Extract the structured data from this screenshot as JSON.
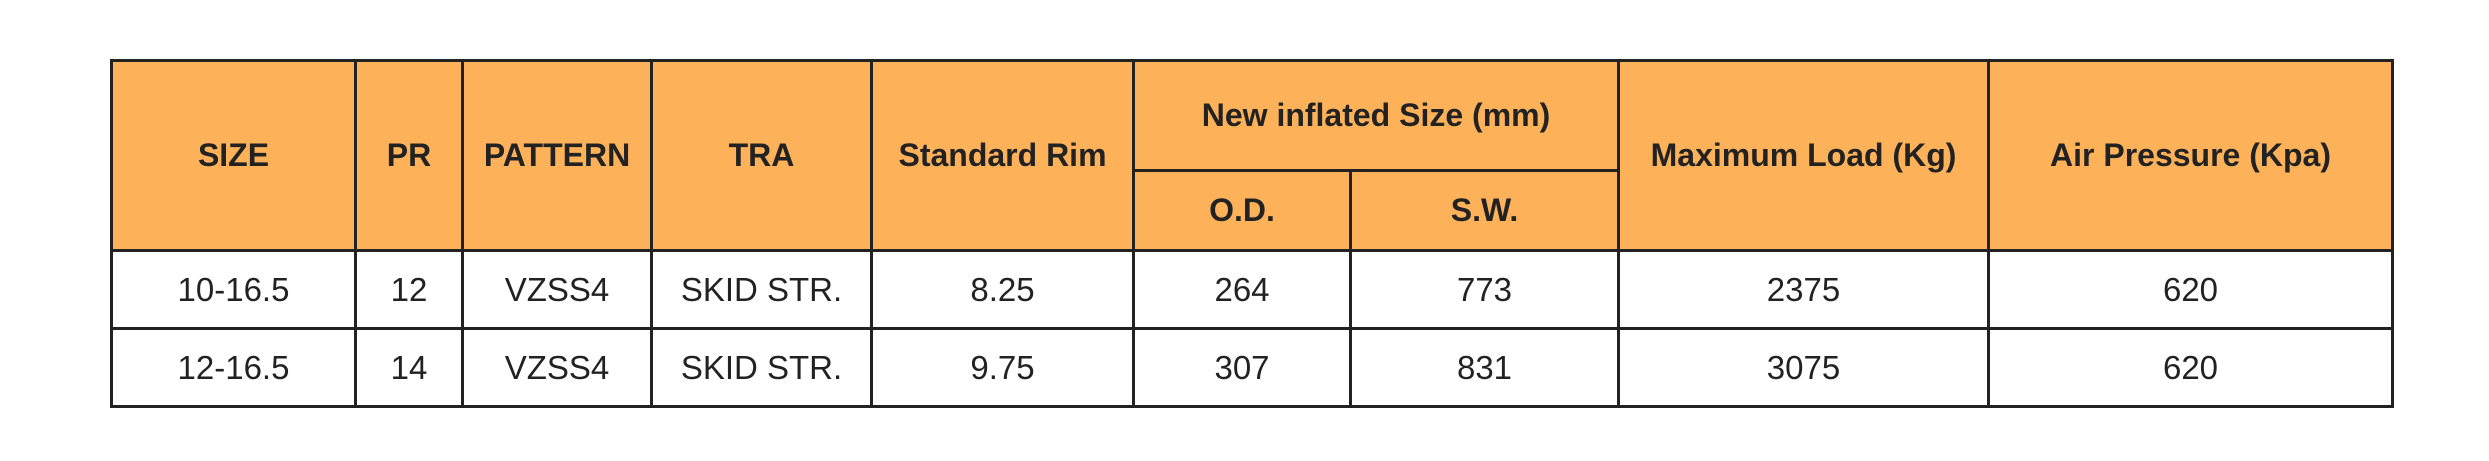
{
  "table": {
    "header_top": [
      "SIZE",
      "PR",
      "PATTERN",
      "TRA",
      "Standard Rim",
      "New inflated Size (mm)",
      "Maximum Load (Kg)",
      "Air Pressure (Kpa)"
    ],
    "header_sub": [
      "O.D.",
      "S.W."
    ],
    "rows": [
      [
        "10-16.5",
        "12",
        "VZSS4",
        "SKID STR.",
        "8.25",
        "264",
        "773",
        "2375",
        "620"
      ],
      [
        "12-16.5",
        "14",
        "VZSS4",
        "SKID STR.",
        "9.75",
        "307",
        "831",
        "3075",
        "620"
      ]
    ]
  }
}
